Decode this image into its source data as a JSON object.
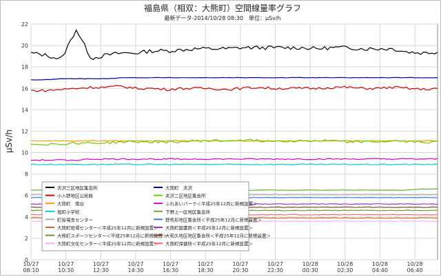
{
  "chart_data": {
    "type": "line",
    "title": "福島県（相双：大熊町）空間線量率グラフ",
    "subtitle": "最新データ-2014/10/28 08:30　単位：μSv/h",
    "ylabel": "μSv/h",
    "xlabel": "",
    "ylim": [
      0,
      22
    ],
    "yticks": [
      "0",
      "2",
      "4",
      "6",
      "8",
      "10",
      "12",
      "14",
      "16",
      "18",
      "20",
      "22"
    ],
    "grid": true,
    "legend_position": "lower-left inside plot",
    "x_ticks": [
      {
        "date": "10/27",
        "time": "08:10"
      },
      {
        "date": "10/27",
        "time": "10:30"
      },
      {
        "date": "10/27",
        "time": "12:30"
      },
      {
        "date": "10/27",
        "time": "14:30"
      },
      {
        "date": "10/27",
        "time": "16:30"
      },
      {
        "date": "10/27",
        "time": "18:30"
      },
      {
        "date": "10/27",
        "time": "20:30"
      },
      {
        "date": "10/27",
        "time": "22:30"
      },
      {
        "date": "10/28",
        "time": "00:30"
      },
      {
        "date": "10/28",
        "time": "02:30"
      },
      {
        "date": "10/28",
        "time": "04:40"
      },
      {
        "date": "10/28",
        "time": "06:40"
      }
    ],
    "x_points": 145,
    "series": [
      {
        "name": "夫沢三区地区集会所",
        "color": "#000000",
        "values": [
          19.3,
          19.1,
          18.7,
          21.5,
          18.8,
          19.1,
          19.3,
          19.3,
          19.5,
          19.5,
          19.6,
          19.7,
          19.7,
          19.7,
          19.8,
          19.8,
          19.8,
          19.8,
          19.8,
          19.7,
          19.8,
          19.8,
          19.7,
          19.7,
          19.7,
          19.4,
          19.3,
          19.4
        ],
        "noise": 0.18
      },
      {
        "name": "小入野地区公民館",
        "color": "#cc0000",
        "values": [
          15.8,
          15.8,
          15.9,
          16.0,
          16.1,
          16.1,
          16.2,
          16.0,
          16.0,
          15.9,
          16.0,
          16.0,
          16.0,
          15.9,
          16.0,
          16.1,
          16.0,
          16.0,
          16.0,
          16.0,
          16.1,
          16.1,
          16.0,
          16.0,
          16.1,
          16.0,
          15.9,
          16.0
        ],
        "noise": 0.12
      },
      {
        "name": "大熊町　南台",
        "color": "#ff9900",
        "values": [
          11.1,
          11.1,
          11.1,
          11.1,
          11.1,
          11.1,
          11.1,
          11.1,
          11.1,
          11.1,
          11.1,
          11.1,
          11.1,
          11.1,
          11.1,
          11.1,
          11.1,
          11.1,
          11.1,
          11.1,
          11.1,
          11.1,
          11.1,
          11.1,
          11.1,
          11.1,
          11.1,
          11.1
        ],
        "noise": 0.03
      },
      {
        "name": "旭町小学校",
        "color": "#00cccc",
        "values": [
          8.9,
          8.9,
          8.9,
          8.9,
          8.9,
          8.9,
          8.9,
          8.9,
          8.9,
          8.9,
          8.9,
          8.9,
          8.9,
          8.9,
          8.9,
          8.9,
          8.9,
          8.9,
          8.9,
          8.9,
          8.9,
          8.9,
          8.9,
          8.9,
          8.9,
          8.9,
          8.9,
          8.9
        ],
        "noise": 0.05
      },
      {
        "name": "町役場支センター",
        "color": "#aaaaaa",
        "values": [
          6.1,
          6.1,
          6.1,
          6.1,
          6.1,
          6.1,
          6.1,
          6.1,
          6.1,
          6.1,
          6.1,
          6.1,
          6.1,
          6.1,
          6.1,
          6.1,
          6.1,
          6.1,
          6.1,
          6.1,
          6.1,
          6.1,
          6.1,
          6.1,
          6.1,
          6.1,
          6.1,
          6.1
        ],
        "noise": 0.02
      },
      {
        "name": "大熊町役場センター＜平成25年12月に新規設置＞",
        "color": "#cc6633",
        "values": [
          3.9,
          3.9,
          3.9,
          3.9,
          3.9,
          3.9,
          3.9,
          3.9,
          3.9,
          3.9,
          3.9,
          3.9,
          3.9,
          3.9,
          3.9,
          3.9,
          3.9,
          3.9,
          3.9,
          3.9,
          3.9,
          3.9,
          3.9,
          3.9,
          3.9,
          3.9,
          3.9,
          3.9
        ],
        "noise": 0.03
      },
      {
        "name": "大熊町スポーツセンター＜平成25年12月に新規設置＞",
        "color": "#669933",
        "values": [
          4.6,
          4.6,
          4.6,
          4.6,
          4.6,
          4.6,
          4.6,
          4.6,
          4.6,
          4.6,
          4.6,
          4.6,
          4.6,
          4.6,
          4.6,
          4.6,
          4.6,
          4.6,
          4.6,
          4.6,
          4.6,
          4.6,
          4.6,
          4.6,
          4.6,
          4.6,
          4.6,
          4.6
        ],
        "noise": 0.03
      },
      {
        "name": "大熊町文化センター＜平成25年12月に新規設置＞",
        "color": "#ffaaee",
        "values": [
          3.6,
          3.6,
          3.6,
          3.6,
          3.6,
          3.6,
          3.6,
          3.6,
          3.6,
          3.6,
          3.6,
          3.6,
          3.6,
          3.6,
          3.6,
          3.6,
          3.6,
          3.6,
          3.6,
          3.6,
          3.6,
          3.6,
          3.6,
          3.6,
          3.6,
          3.6,
          3.6,
          3.6
        ],
        "noise": 0.02
      },
      {
        "name": "大熊町　夫沢",
        "color": "#0000aa",
        "values": [
          16.8,
          16.8,
          16.9,
          16.9,
          16.9,
          16.9,
          17.0,
          17.0,
          17.0,
          17.0,
          17.0,
          17.0,
          17.0,
          17.0,
          17.0,
          17.0,
          17.0,
          17.0,
          17.0,
          17.0,
          17.0,
          17.0,
          17.0,
          17.0,
          17.0,
          17.0,
          17.0,
          17.0
        ],
        "noise": 0.02
      },
      {
        "name": "夫沢二区地区集会所",
        "color": "#66cc00",
        "values": [
          10.8,
          10.8,
          10.8,
          10.9,
          10.9,
          10.9,
          11.0,
          11.0,
          11.0,
          11.0,
          11.0,
          11.1,
          11.1,
          11.1,
          11.2,
          11.1,
          11.1,
          11.1,
          11.1,
          11.1,
          11.1,
          11.0,
          11.0,
          11.0,
          11.1,
          11.0,
          11.0,
          11.0
        ],
        "noise": 0.12
      },
      {
        "name": "ふれあいパーク＜平成25年12月に新規設置＞",
        "color": "#cc00cc",
        "values": [
          9.3,
          9.3,
          9.3,
          9.3,
          9.4,
          9.4,
          9.4,
          9.4,
          9.4,
          9.4,
          9.4,
          9.4,
          9.4,
          9.4,
          9.4,
          9.4,
          9.4,
          9.4,
          9.4,
          9.4,
          9.4,
          9.4,
          9.4,
          9.4,
          9.4,
          9.4,
          9.4,
          9.4
        ],
        "noise": 0.06
      },
      {
        "name": "下野上一区地区集会所",
        "color": "#66aa33",
        "values": [
          6.5,
          6.5,
          6.5,
          6.5,
          6.5,
          6.5,
          6.5,
          6.5,
          6.5,
          6.5,
          6.5,
          6.5,
          6.5,
          6.5,
          6.5,
          6.5,
          6.5,
          6.5,
          6.5,
          6.5,
          6.5,
          6.5,
          6.5,
          6.5,
          6.5,
          6.5,
          6.6,
          6.6
        ],
        "noise": 0.02
      },
      {
        "name": "野馬形地区集会所＜平成25年12月に新規設置＞",
        "color": "#4477cc",
        "values": [
          5.8,
          5.8,
          5.8,
          5.8,
          5.8,
          5.8,
          5.8,
          5.8,
          5.8,
          5.8,
          5.8,
          5.8,
          5.8,
          5.8,
          5.8,
          5.8,
          5.8,
          5.8,
          5.8,
          5.8,
          5.8,
          5.8,
          5.8,
          5.8,
          5.8,
          5.8,
          5.8,
          5.8
        ],
        "noise": 0.02
      },
      {
        "name": "大熊町図書館＜平成25年12月に新規設置＞",
        "color": "#9933cc",
        "values": [
          5.2,
          5.2,
          5.2,
          5.2,
          5.2,
          5.2,
          5.2,
          5.2,
          5.2,
          5.2,
          5.2,
          5.2,
          5.2,
          5.2,
          5.2,
          5.2,
          5.2,
          5.2,
          5.2,
          5.2,
          5.2,
          5.2,
          5.2,
          5.2,
          5.2,
          5.2,
          5.2,
          5.2
        ],
        "noise": 0.03
      },
      {
        "name": "大和久地区地区集会所＜平成25年12月に新規設置＞",
        "color": "#884422",
        "values": [
          4.9,
          4.9,
          4.9,
          4.9,
          4.9,
          4.9,
          4.9,
          4.9,
          4.9,
          4.9,
          4.9,
          4.9,
          4.9,
          4.9,
          4.9,
          4.9,
          4.9,
          4.9,
          4.9,
          4.9,
          4.9,
          4.9,
          4.9,
          4.9,
          4.9,
          4.9,
          4.9,
          4.9
        ],
        "noise": 0.03
      },
      {
        "name": "大熊町保健所＜平成25年12月に新規設置＞",
        "color": "#ff6666",
        "values": [
          4.2,
          4.2,
          4.2,
          4.2,
          4.2,
          4.2,
          4.2,
          4.2,
          4.2,
          4.2,
          4.2,
          4.2,
          4.2,
          4.2,
          4.2,
          4.2,
          4.2,
          4.2,
          4.2,
          4.2,
          4.2,
          4.2,
          4.2,
          4.2,
          4.2,
          4.2,
          4.2,
          4.2
        ],
        "noise": 0.03
      }
    ]
  }
}
